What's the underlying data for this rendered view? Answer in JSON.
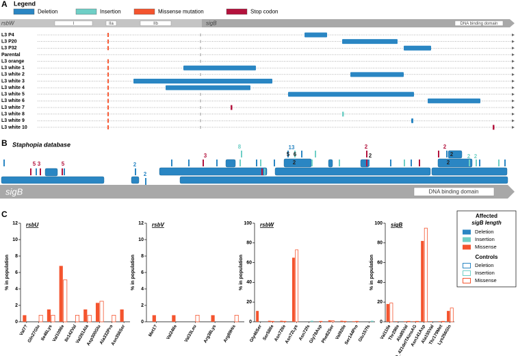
{
  "panel_labels": [
    "A",
    "B",
    "C"
  ],
  "panel_a": {
    "legend_title": "Legend",
    "legend": [
      "Deletion",
      "Insertion",
      "Missense mutation",
      "Stop codon"
    ],
    "gene_labels": [
      "rsbW",
      "I",
      "IIa",
      "IIb",
      "sigB",
      "DNA binding domain"
    ],
    "rows": [
      "L3 P4",
      "L3 P20",
      "L3 P32",
      "Parental",
      "L3 orange",
      "L3 white 1",
      "L3 white 2",
      "L3 white 3",
      "L3 white 4",
      "L3 white 5",
      "L3 white 6",
      "L3 white 7",
      "L3 white 8",
      "L3 white 9",
      "L3 white 10"
    ]
  },
  "panel_b": {
    "title": "Staphopia database",
    "gene_labels": [
      "sigB",
      "DNA binding domain"
    ],
    "counts": [
      "5",
      "3",
      "5",
      "2",
      "2",
      "3",
      "8",
      "13",
      "5",
      "6",
      "2",
      "2",
      "2",
      "2",
      "2",
      "2",
      "2",
      "2"
    ]
  },
  "panel_c": {
    "y_label": "% in population",
    "legend": {
      "title_1": "Affected",
      "title_2": "sigB length",
      "affected": [
        "Deletion",
        "Insertion",
        "Missense"
      ],
      "controls_title": "Controls",
      "controls": [
        "Deletion",
        "Insertion",
        "Missense"
      ]
    }
  },
  "chart_data": [
    {
      "type": "bar",
      "title": "rsbU",
      "categories": [
        "Val7?",
        "Gln27Glu",
        "Ile46Lys",
        "Val109Ile",
        "Ile142Val",
        "Val261Ala",
        "Asp300Glu",
        "Ala332Pro",
        "Asn356Ser"
      ],
      "ylim": [
        0,
        12
      ],
      "yticks": [
        0,
        2,
        4,
        6,
        8,
        10,
        12
      ],
      "series": [
        {
          "color": "#f4542e",
          "fill": true,
          "values": [
            0.8,
            null,
            1.5,
            6.8,
            null,
            1.5,
            2.3,
            null,
            1.5
          ]
        },
        {
          "color": "#f4542e",
          "fill": false,
          "values": [
            null,
            0.8,
            0.8,
            5.1,
            0.8,
            0.8,
            2.5,
            0.8,
            null
          ]
        }
      ]
    },
    {
      "type": "bar",
      "title": "rsbV",
      "categories": [
        "Met1?",
        "Val24Ile",
        "Val33Leu",
        "Arg38Lys",
        "Arg89His"
      ],
      "ylim": [
        0,
        12
      ],
      "yticks": [
        0,
        2,
        4,
        6,
        8,
        10,
        12
      ],
      "series": [
        {
          "color": "#f4542e",
          "fill": true,
          "values": [
            0.8,
            0.8,
            null,
            0.8,
            null
          ]
        },
        {
          "color": "#f4542e",
          "fill": false,
          "values": [
            null,
            null,
            0.8,
            null,
            0.8
          ]
        }
      ]
    },
    {
      "type": "bar",
      "title": "rsbW",
      "categories": [
        "Gly46Ser",
        "Ser58Ile",
        "Asn72Ile",
        "Asn72Lys",
        "Asn72fs",
        "Gly78Asp",
        "Phe82Ser",
        "Val92Ile",
        "Ser144Pro",
        "Glu157fs"
      ],
      "ylim": [
        0,
        100
      ],
      "yticks": [
        0,
        20,
        40,
        60,
        80,
        100
      ],
      "series": [
        {
          "color": "#f4542e",
          "fill": true,
          "values": [
            11,
            1,
            1,
            65,
            null,
            null,
            1.5,
            1,
            0.5,
            null
          ]
        },
        {
          "color": "#f4542e",
          "fill": false,
          "values": [
            null,
            0.5,
            0.5,
            73,
            null,
            0.5,
            1,
            0.5,
            0.5,
            null
          ]
        },
        {
          "color": "#6fcfc6",
          "fill": true,
          "values": [
            null,
            null,
            null,
            null,
            1,
            null,
            null,
            null,
            null,
            1
          ]
        }
      ]
    },
    {
      "type": "bar",
      "title": "sigB",
      "categories": [
        "Val11Ile",
        "Thr29Ile",
        "Ala85Val",
        "420_421delTAinsAG",
        "Asn141Asp",
        "Ala155Val",
        "Thr179Met",
        "Lys256Gln"
      ],
      "ylim": [
        0,
        100
      ],
      "yticks": [
        0,
        20,
        40,
        60,
        80,
        100
      ],
      "series": [
        {
          "color": "#f4542e",
          "fill": true,
          "values": [
            18,
            0.5,
            0.5,
            0.5,
            82,
            0.5,
            0.5,
            11
          ]
        },
        {
          "color": "#f4542e",
          "fill": false,
          "values": [
            19,
            null,
            0.5,
            0.5,
            95,
            null,
            0.5,
            14
          ]
        }
      ]
    }
  ]
}
